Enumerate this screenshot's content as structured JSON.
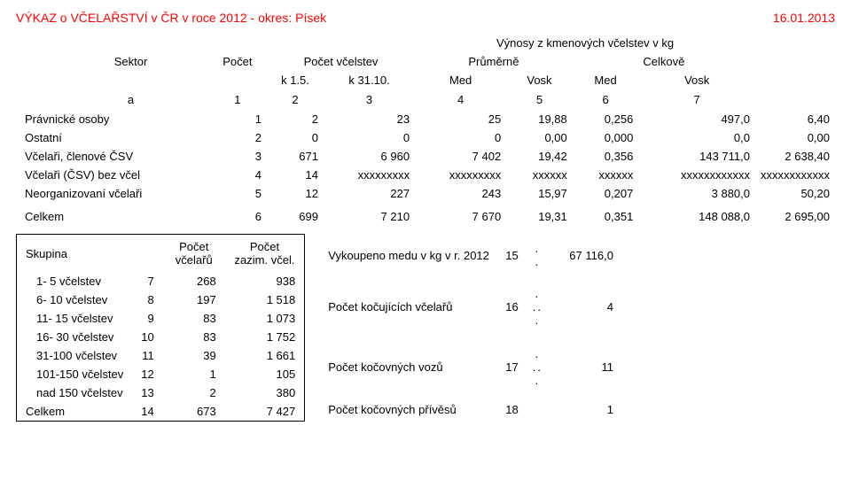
{
  "header": {
    "title": "VÝKAZ o VČELAŘSTVÍ v ČR v roce  2012  -  okres: Písek",
    "date": "16.01.2013"
  },
  "main": {
    "top_label": "Výnosy z kmenových včelstev v kg",
    "cols": {
      "sector": "Sektor",
      "count": "Počet",
      "hives": "Počet včelstev",
      "avg": "Průměrně",
      "total": "Celkově",
      "k15": "k 1.5.",
      "k3110": "k 31.10.",
      "med1": "Med",
      "vosk1": "Vosk",
      "med2": "Med",
      "vosk2": "Vosk"
    },
    "row_a": {
      "label": "a",
      "c1": "1",
      "c2": "2",
      "c3": "3",
      "c4": "4",
      "c5": "5",
      "c6": "6",
      "c7": "7"
    },
    "rows": [
      {
        "label": "Právnické osoby",
        "c1": "1",
        "c2": "2",
        "c3": "23",
        "c4": "25",
        "c5": "19,88",
        "c6": "0,256",
        "c7": "497,0",
        "c8": "6,40"
      },
      {
        "label": "Ostatní",
        "c1": "2",
        "c2": "0",
        "c3": "0",
        "c4": "0",
        "c5": "0,00",
        "c6": "0,000",
        "c7": "0,0",
        "c8": "0,00"
      },
      {
        "label": "Včelaři, členové ČSV",
        "c1": "3",
        "c2": "671",
        "c3": "6 960",
        "c4": "7 402",
        "c5": "19,42",
        "c6": "0,356",
        "c7": "143 711,0",
        "c8": "2 638,40"
      },
      {
        "label": "Včelaři (ČSV) bez včel",
        "c1": "4",
        "c2": "14",
        "c3": "xxxxxxxxx",
        "c4": "xxxxxxxxx",
        "c5": "xxxxxx",
        "c6": "xxxxxx",
        "c7": "xxxxxxxxxxxx",
        "c8": "xxxxxxxxxxxx"
      },
      {
        "label": "Neorganizovaní včelaři",
        "c1": "5",
        "c2": "12",
        "c3": "227",
        "c4": "243",
        "c5": "15,97",
        "c6": "0,207",
        "c7": "3 880,0",
        "c8": "50,20"
      }
    ],
    "total": {
      "label": "Celkem",
      "c1": "6",
      "c2": "699",
      "c3": "7 210",
      "c4": "7 670",
      "c5": "19,31",
      "c6": "0,351",
      "c7": "148 088,0",
      "c8": "2 695,00"
    }
  },
  "group": {
    "hdr": {
      "label": "Skupina",
      "count": "Počet včelařů",
      "hives": "Počet zazim. včel."
    },
    "rows": [
      {
        "label": "1- 5 včelstev",
        "n": "7",
        "c": "268",
        "h": "938"
      },
      {
        "label": "6- 10 včelstev",
        "n": "8",
        "c": "197",
        "h": "1 518"
      },
      {
        "label": "11- 15 včelstev",
        "n": "9",
        "c": "83",
        "h": "1 073"
      },
      {
        "label": "16- 30 včelstev",
        "n": "10",
        "c": "83",
        "h": "1 752"
      },
      {
        "label": "31-100 včelstev",
        "n": "11",
        "c": "39",
        "h": "1 661"
      },
      {
        "label": "101-150 včelstev",
        "n": "12",
        "c": "1",
        "h": "105"
      },
      {
        "label": "nad 150 včelstev",
        "n": "13",
        "c": "2",
        "h": "380"
      }
    ],
    "total": {
      "label": "Celkem",
      "n": "14",
      "c": "673",
      "h": "7 427"
    }
  },
  "stats": {
    "rows": [
      {
        "label": "Vykoupeno medu v kg v r. 2012",
        "n": "15",
        "dots": ". .",
        "v": "67 116,0"
      },
      {
        "label": "Počet kočujících včelařů",
        "n": "16",
        "dots": ". .. .",
        "v": "4"
      },
      {
        "label": "Počet kočovných vozů",
        "n": "17",
        "dots": ". .. .",
        "v": "11"
      },
      {
        "label": "Počet kočovných přívěsů",
        "n": "18",
        "dots": "",
        "v": "1"
      }
    ]
  }
}
